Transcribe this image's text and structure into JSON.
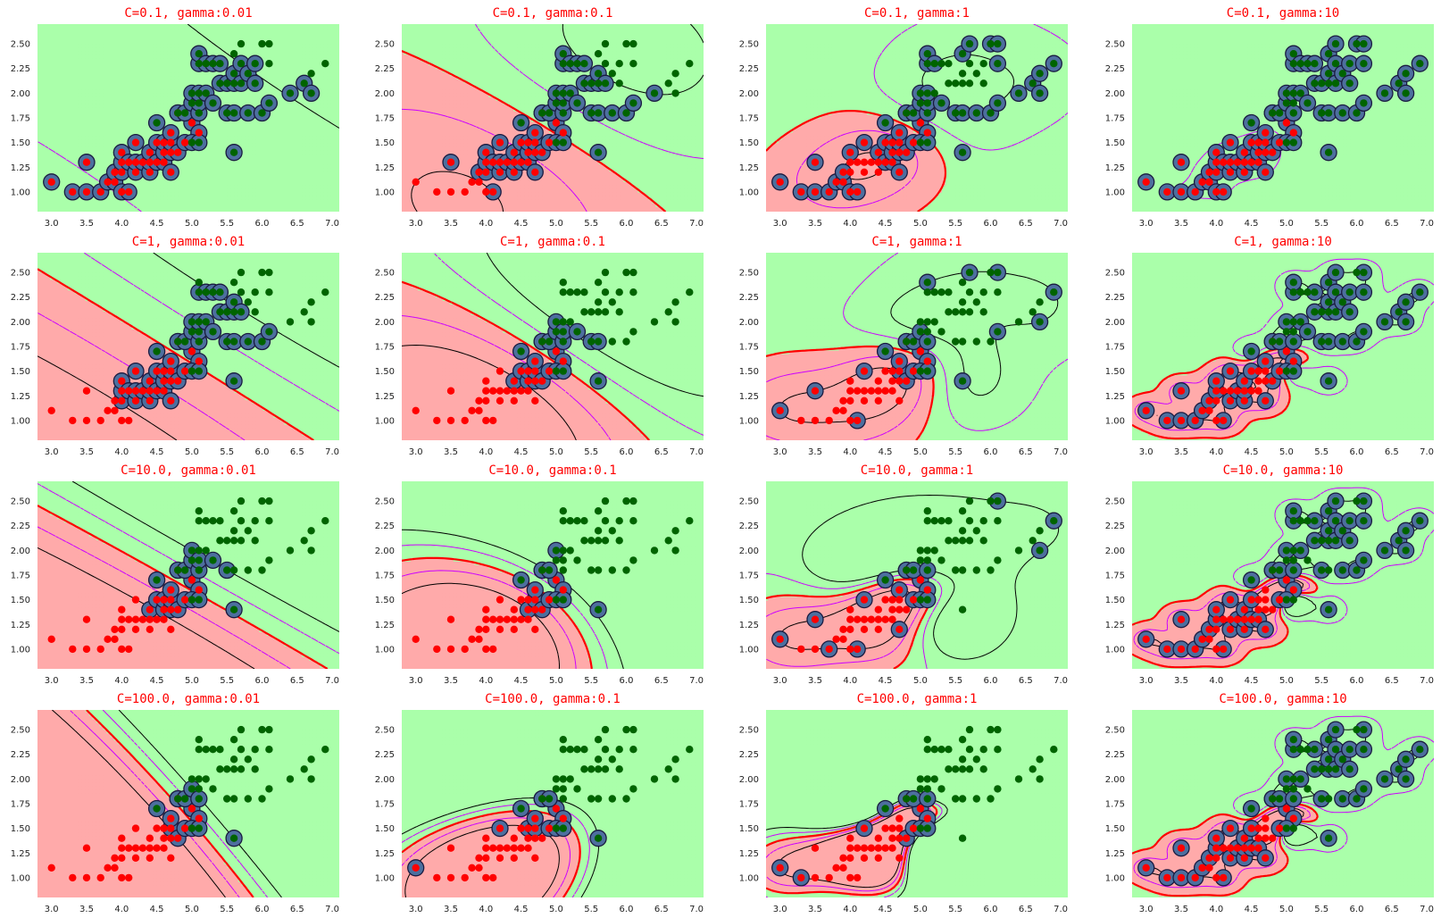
{
  "chart_data": {
    "type": "scatter",
    "subtype": "svm-decision-boundary-grid",
    "grid": "4x4",
    "axes_shared": {
      "xlim": [
        2.8,
        7.1
      ],
      "ylim": [
        0.8,
        2.7
      ],
      "xticks": [
        3.0,
        3.5,
        4.0,
        4.5,
        5.0,
        5.5,
        6.0,
        6.5,
        7.0
      ],
      "xtick_labels": [
        "3.0",
        "3.5",
        "4.0",
        "4.5",
        "5.0",
        "5.5",
        "6.0",
        "6.5",
        "7.0"
      ],
      "yticks": [
        1.0,
        1.25,
        1.5,
        1.75,
        2.0,
        2.25,
        2.5
      ],
      "ytick_labels": [
        "1.00",
        "1.25",
        "1.50",
        "1.75",
        "2.00",
        "2.25",
        "2.50"
      ],
      "grid": false
    },
    "colors": {
      "region_class0": "#ffaaaa",
      "region_class1": "#aaffaa",
      "points_class0": "#ff0000",
      "points_class1": "#006400",
      "support_vector_fill": "#4d6f9e",
      "support_vector_edge": "#1a1a40",
      "decision_boundary": "#ff0000",
      "margin_line": "#000000",
      "margin_dashed": "#cc00ff",
      "title": "#ff0000"
    },
    "class0_points": [
      [
        3.0,
        1.1
      ],
      [
        3.3,
        1.0
      ],
      [
        3.5,
        1.0
      ],
      [
        3.5,
        1.3
      ],
      [
        3.7,
        1.0
      ],
      [
        3.8,
        1.1
      ],
      [
        3.9,
        1.1
      ],
      [
        3.9,
        1.2
      ],
      [
        4.0,
        1.0
      ],
      [
        4.0,
        1.2
      ],
      [
        4.0,
        1.3
      ],
      [
        4.0,
        1.4
      ],
      [
        4.1,
        1.0
      ],
      [
        4.1,
        1.3
      ],
      [
        4.2,
        1.2
      ],
      [
        4.2,
        1.3
      ],
      [
        4.2,
        1.5
      ],
      [
        4.3,
        1.3
      ],
      [
        4.4,
        1.2
      ],
      [
        4.4,
        1.3
      ],
      [
        4.4,
        1.4
      ],
      [
        4.5,
        1.3
      ],
      [
        4.5,
        1.5
      ],
      [
        4.6,
        1.3
      ],
      [
        4.6,
        1.4
      ],
      [
        4.6,
        1.5
      ],
      [
        4.7,
        1.2
      ],
      [
        4.7,
        1.4
      ],
      [
        4.7,
        1.5
      ],
      [
        4.7,
        1.6
      ],
      [
        4.8,
        1.4
      ],
      [
        4.8,
        1.8
      ],
      [
        4.9,
        1.5
      ],
      [
        5.0,
        1.7
      ],
      [
        5.1,
        1.6
      ]
    ],
    "class1_points": [
      [
        4.5,
        1.7
      ],
      [
        4.8,
        1.8
      ],
      [
        4.9,
        1.8
      ],
      [
        5.0,
        1.5
      ],
      [
        5.0,
        1.9
      ],
      [
        5.0,
        2.0
      ],
      [
        5.1,
        1.5
      ],
      [
        5.1,
        1.8
      ],
      [
        5.1,
        1.9
      ],
      [
        5.1,
        2.0
      ],
      [
        5.1,
        2.3
      ],
      [
        5.1,
        2.4
      ],
      [
        5.2,
        2.0
      ],
      [
        5.2,
        2.3
      ],
      [
        5.3,
        1.9
      ],
      [
        5.3,
        2.3
      ],
      [
        5.4,
        2.1
      ],
      [
        5.4,
        2.3
      ],
      [
        5.5,
        1.8
      ],
      [
        5.5,
        2.1
      ],
      [
        5.6,
        1.4
      ],
      [
        5.6,
        1.8
      ],
      [
        5.6,
        2.1
      ],
      [
        5.6,
        2.2
      ],
      [
        5.6,
        2.4
      ],
      [
        5.7,
        2.1
      ],
      [
        5.7,
        2.3
      ],
      [
        5.7,
        2.5
      ],
      [
        5.8,
        1.8
      ],
      [
        5.8,
        2.2
      ],
      [
        5.9,
        2.1
      ],
      [
        5.9,
        2.3
      ],
      [
        6.0,
        1.8
      ],
      [
        6.0,
        2.5
      ],
      [
        6.1,
        1.9
      ],
      [
        6.1,
        2.3
      ],
      [
        6.1,
        2.5
      ],
      [
        6.4,
        2.0
      ],
      [
        6.6,
        2.1
      ],
      [
        6.7,
        2.0
      ],
      [
        6.7,
        2.2
      ],
      [
        6.9,
        2.3
      ]
    ],
    "panels": [
      {
        "title": "C=0.1, gamma:0.01",
        "C": 0.1,
        "gamma": 0.01
      },
      {
        "title": "C=0.1, gamma:0.1",
        "C": 0.1,
        "gamma": 0.1
      },
      {
        "title": "C=0.1, gamma:1",
        "C": 0.1,
        "gamma": 1
      },
      {
        "title": "C=0.1, gamma:10",
        "C": 0.1,
        "gamma": 10
      },
      {
        "title": "C=1, gamma:0.01",
        "C": 1,
        "gamma": 0.01
      },
      {
        "title": "C=1, gamma:0.1",
        "C": 1,
        "gamma": 0.1
      },
      {
        "title": "C=1, gamma:1",
        "C": 1,
        "gamma": 1
      },
      {
        "title": "C=1, gamma:10",
        "C": 1,
        "gamma": 10
      },
      {
        "title": "C=10.0, gamma:0.01",
        "C": 10.0,
        "gamma": 0.01
      },
      {
        "title": "C=10.0, gamma:0.1",
        "C": 10.0,
        "gamma": 0.1
      },
      {
        "title": "C=10.0, gamma:1",
        "C": 10.0,
        "gamma": 1
      },
      {
        "title": "C=10.0, gamma:10",
        "C": 10.0,
        "gamma": 10
      },
      {
        "title": "C=100.0, gamma:0.01",
        "C": 100.0,
        "gamma": 0.01
      },
      {
        "title": "C=100.0, gamma:0.1",
        "C": 100.0,
        "gamma": 0.1
      },
      {
        "title": "C=100.0, gamma:1",
        "C": 100.0,
        "gamma": 1
      },
      {
        "title": "C=100.0, gamma:10",
        "C": 100.0,
        "gamma": 10
      }
    ]
  }
}
